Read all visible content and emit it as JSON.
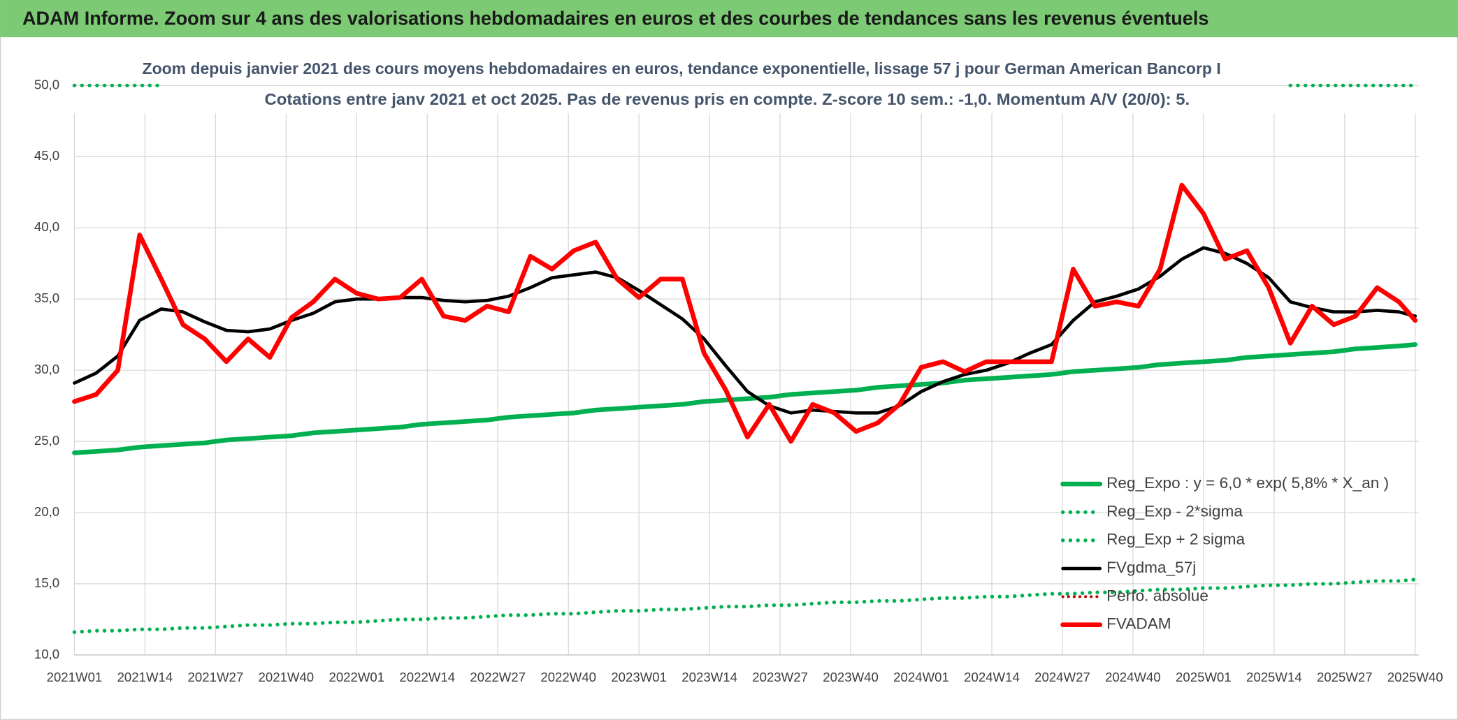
{
  "chart_data": {
    "type": "line",
    "header": "ADAM Informe. Zoom sur 4 ans des valorisations hebdomadaires en euros et des courbes de tendances sans les revenus éventuels",
    "title": "Zoom depuis janvier 2021 des cours moyens hebdomadaires en euros, tendance exponentielle, lissage 57 j pour German American Bancorp I",
    "subtitle": "Cotations entre janv 2021 et oct 2025. Pas de revenus pris en compte. Z-score 10 sem.: -1,0. Momentum A/V (20/0): 5.",
    "x": [
      0,
      4,
      8,
      12,
      16,
      20,
      24,
      28,
      32,
      36,
      40,
      44,
      48,
      52,
      56,
      60,
      64,
      68,
      72,
      76,
      80,
      84,
      88,
      92,
      96,
      100,
      104,
      108,
      112,
      116,
      120,
      124,
      128,
      132,
      136,
      140,
      144,
      148,
      152,
      156,
      160,
      164,
      168,
      172,
      176,
      180,
      184,
      188,
      192,
      196,
      200,
      204,
      208,
      212,
      216,
      220,
      224,
      228,
      232,
      236,
      240,
      244,
      247
    ],
    "xlim": [
      0,
      247
    ],
    "xticks": [
      {
        "value": 0,
        "label": "2021W01"
      },
      {
        "value": 13,
        "label": "2021W14"
      },
      {
        "value": 26,
        "label": "2021W27"
      },
      {
        "value": 39,
        "label": "2021W40"
      },
      {
        "value": 52,
        "label": "2022W01"
      },
      {
        "value": 65,
        "label": "2022W14"
      },
      {
        "value": 78,
        "label": "2022W27"
      },
      {
        "value": 91,
        "label": "2022W40"
      },
      {
        "value": 104,
        "label": "2023W01"
      },
      {
        "value": 117,
        "label": "2023W14"
      },
      {
        "value": 130,
        "label": "2023W27"
      },
      {
        "value": 143,
        "label": "2023W40"
      },
      {
        "value": 156,
        "label": "2024W01"
      },
      {
        "value": 169,
        "label": "2024W14"
      },
      {
        "value": 182,
        "label": "2024W27"
      },
      {
        "value": 195,
        "label": "2024W40"
      },
      {
        "value": 208,
        "label": "2025W01"
      },
      {
        "value": 221,
        "label": "2025W14"
      },
      {
        "value": 234,
        "label": "2025W27"
      },
      {
        "value": 247,
        "label": "2025W40"
      }
    ],
    "ylim": [
      10,
      50
    ],
    "yticks": [
      {
        "value": 10,
        "label": "10,0"
      },
      {
        "value": 15,
        "label": "15,0"
      },
      {
        "value": 20,
        "label": "20,0"
      },
      {
        "value": 25,
        "label": "25,0"
      },
      {
        "value": 30,
        "label": "30,0"
      },
      {
        "value": 35,
        "label": "35,0"
      },
      {
        "value": 40,
        "label": "40,0"
      },
      {
        "value": 45,
        "label": "45,0"
      },
      {
        "value": 50,
        "label": "50,0"
      }
    ],
    "grid": true,
    "series": [
      {
        "name": "Reg_Expo : y = 6,0 * exp( 5,8% *  X_an )",
        "color": "#00b050",
        "line_style": "solid",
        "width": 5,
        "values": [
          24.2,
          24.3,
          24.4,
          24.6,
          24.7,
          24.8,
          24.9,
          25.1,
          25.2,
          25.3,
          25.4,
          25.6,
          25.7,
          25.8,
          25.9,
          26.0,
          26.2,
          26.3,
          26.4,
          26.5,
          26.7,
          26.8,
          26.9,
          27.0,
          27.2,
          27.3,
          27.4,
          27.5,
          27.6,
          27.8,
          27.9,
          28.0,
          28.1,
          28.3,
          28.4,
          28.5,
          28.6,
          28.8,
          28.9,
          29.0,
          29.1,
          29.3,
          29.4,
          29.5,
          29.6,
          29.7,
          29.9,
          30.0,
          30.1,
          30.2,
          30.4,
          30.5,
          30.6,
          30.7,
          30.9,
          31.0,
          31.1,
          31.2,
          31.3,
          31.5,
          31.6,
          31.7,
          31.8
        ]
      },
      {
        "name": "Reg_Exp - 2*sigma",
        "color": "#00b050",
        "line_style": "dotted",
        "width": 4,
        "values": [
          11.6,
          11.7,
          11.7,
          11.8,
          11.8,
          11.9,
          11.9,
          12.0,
          12.1,
          12.1,
          12.2,
          12.2,
          12.3,
          12.3,
          12.4,
          12.5,
          12.5,
          12.6,
          12.6,
          12.7,
          12.8,
          12.8,
          12.9,
          12.9,
          13.0,
          13.1,
          13.1,
          13.2,
          13.2,
          13.3,
          13.4,
          13.4,
          13.5,
          13.5,
          13.6,
          13.7,
          13.7,
          13.8,
          13.8,
          13.9,
          14.0,
          14.0,
          14.1,
          14.1,
          14.2,
          14.3,
          14.3,
          14.4,
          14.4,
          14.5,
          14.6,
          14.6,
          14.7,
          14.7,
          14.8,
          14.9,
          14.9,
          15.0,
          15.0,
          15.1,
          15.2,
          15.2,
          15.3
        ]
      },
      {
        "name": "Reg_Exp + 2 sigma",
        "color": "#00b050",
        "line_style": "dotted",
        "width": 4,
        "values": [
          50,
          50,
          50,
          50,
          50,
          null,
          null,
          null,
          null,
          null,
          null,
          null,
          null,
          null,
          null,
          null,
          null,
          null,
          null,
          null,
          null,
          null,
          null,
          null,
          null,
          null,
          null,
          null,
          null,
          null,
          null,
          null,
          null,
          null,
          null,
          null,
          null,
          null,
          null,
          null,
          null,
          null,
          null,
          null,
          null,
          null,
          null,
          null,
          null,
          null,
          null,
          null,
          null,
          null,
          null,
          null,
          50,
          50,
          50,
          50,
          50,
          50,
          50
        ]
      },
      {
        "name": "FVgdma_57j",
        "color": "#000000",
        "line_style": "solid",
        "width": 3.5,
        "values": [
          29.1,
          29.8,
          31.0,
          33.5,
          34.3,
          34.1,
          33.4,
          32.8,
          32.7,
          32.9,
          33.5,
          34.0,
          34.8,
          35.0,
          35.0,
          35.1,
          35.1,
          34.9,
          34.8,
          34.9,
          35.2,
          35.8,
          36.5,
          36.7,
          36.9,
          36.5,
          35.6,
          34.6,
          33.6,
          32.2,
          30.3,
          28.5,
          27.5,
          27.0,
          27.2,
          27.1,
          27.0,
          27.0,
          27.5,
          28.5,
          29.2,
          29.7,
          30.0,
          30.5,
          31.2,
          31.8,
          33.5,
          34.8,
          35.2,
          35.7,
          36.6,
          37.8,
          38.6,
          38.2,
          37.5,
          36.5,
          34.8,
          34.4,
          34.1,
          34.1,
          34.2,
          34.1,
          33.8
        ]
      },
      {
        "name": "Perfo. absolue",
        "color": "#c00000",
        "line_style": "dotted",
        "width": 3,
        "values": [
          null,
          null,
          null,
          null,
          null,
          null,
          null,
          null,
          null,
          null,
          null,
          null,
          null,
          null,
          null,
          null,
          null,
          null,
          null,
          null,
          null,
          null,
          null,
          null,
          null,
          null,
          null,
          null,
          null,
          null,
          null,
          null,
          null,
          null,
          null,
          null,
          null,
          null,
          null,
          null,
          null,
          null,
          null,
          null,
          null,
          null,
          null,
          null,
          null,
          null,
          null,
          null,
          null,
          null,
          null,
          null,
          null,
          null,
          null,
          null,
          null,
          null,
          null
        ]
      },
      {
        "name": "FVADAM",
        "color": "#ff0000",
        "line_style": "solid",
        "width": 5,
        "values": [
          27.8,
          28.3,
          30.0,
          39.5,
          36.4,
          33.2,
          32.2,
          30.6,
          32.2,
          30.9,
          33.7,
          34.8,
          36.4,
          35.4,
          35.0,
          35.1,
          36.4,
          33.8,
          33.5,
          34.5,
          34.1,
          38.0,
          37.1,
          38.4,
          39.0,
          36.4,
          35.1,
          36.4,
          36.4,
          31.2,
          28.6,
          25.3,
          27.6,
          25.0,
          27.6,
          27.0,
          25.7,
          26.3,
          27.6,
          30.2,
          30.6,
          29.9,
          30.6,
          30.6,
          30.6,
          30.6,
          37.1,
          34.5,
          34.8,
          34.5,
          37.1,
          43.0,
          41.0,
          37.8,
          38.4,
          35.8,
          31.9,
          34.5,
          33.2,
          33.8,
          35.8,
          34.8,
          33.5
        ]
      }
    ],
    "legend": "lower right"
  }
}
